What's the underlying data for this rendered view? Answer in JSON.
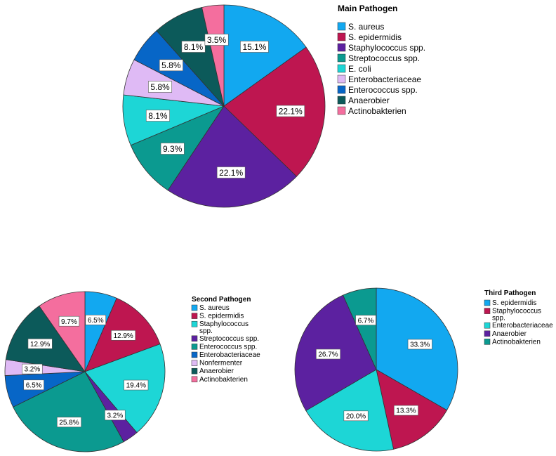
{
  "chart_data": [
    {
      "type": "pie",
      "title": "Main Pathogen",
      "categories": [
        "S. aureus",
        "S. epidermidis",
        "Staphylococcus spp.",
        "Streptococcus spp.",
        "E. coli",
        "Enterobacteriaceae",
        "Enterococcus spp.",
        "Anaerobier",
        "Actinobakterien"
      ],
      "values": [
        15.1,
        22.1,
        22.1,
        9.3,
        8.1,
        5.8,
        5.8,
        8.1,
        3.5
      ],
      "labels": [
        "15.1%",
        "22.1%",
        "22.1%",
        "9.3%",
        "8.1%",
        "5.8%",
        "5.8%",
        "8.1%",
        "3.5%"
      ],
      "colors": [
        "#12a8f0",
        "#be1650",
        "#5c21a0",
        "#0b9a90",
        "#1dd6d6",
        "#dfbaf5",
        "#0766c7",
        "#0c5a5a",
        "#f46e9e"
      ],
      "legend_labels": [
        "S. aureus",
        "S. epidermidis",
        "Staphylococcus spp.",
        "Streptococcus spp.",
        "E. coli",
        "Enterobacteriaceae",
        "Enterococcus spp.",
        "Anaerobier",
        "Actinobakterien"
      ],
      "legend_colors": [
        "#12a8f0",
        "#be1650",
        "#5c21a0",
        "#0b9a90",
        "#1dd6d6",
        "#dfbaf5",
        "#0766c7",
        "#0c5a5a",
        "#f46e9e"
      ],
      "legend_position": "right"
    },
    {
      "type": "pie",
      "title": "Second Pathogen",
      "categories": [
        "S. aureus",
        "S. epidermidis",
        "Staphylococcus spp.",
        "Streptococcus spp.",
        "Enterococcus spp.",
        "Enterobacteriaceae",
        "Nonfermenter",
        "Anaerobier",
        "Actinobakterien"
      ],
      "values": [
        6.5,
        12.9,
        19.4,
        3.2,
        25.8,
        6.5,
        3.2,
        12.9,
        9.7
      ],
      "labels": [
        "6.5%",
        "12.9%",
        "19.4%",
        "3.2%",
        "25.8%",
        "6.5%",
        "3.2%",
        "12.9%",
        "9.7%"
      ],
      "colors": [
        "#12a8f0",
        "#be1650",
        "#1dd6d6",
        "#5c21a0",
        "#0b9a90",
        "#0766c7",
        "#dfbaf5",
        "#0c5a5a",
        "#f46e9e"
      ],
      "legend_labels": [
        "S. aureus",
        "S. epidermidis",
        "Staphylococcus\nspp.",
        "Streptococcus spp.",
        "Enterococcus spp.",
        "Enterobacteriaceae",
        "Nonfermenter",
        "Anaerobier",
        "Actinobakterien"
      ],
      "legend_colors": [
        "#12a8f0",
        "#be1650",
        "#1dd6d6",
        "#5c21a0",
        "#0b9a90",
        "#0766c7",
        "#dfbaf5",
        "#0c5a5a",
        "#f46e9e"
      ],
      "legend_position": "right"
    },
    {
      "type": "pie",
      "title": "Third Pathogen",
      "categories": [
        "S. epidermidis",
        "Staphylococcus spp.",
        "Enterobacteriaceae",
        "Anaerobier",
        "Actinobakterien"
      ],
      "values": [
        33.3,
        13.3,
        20.0,
        26.7,
        6.7
      ],
      "labels": [
        "33.3%",
        "13.3%",
        "20.0%",
        "26.7%",
        "6.7%"
      ],
      "colors": [
        "#12a8f0",
        "#be1650",
        "#1dd6d6",
        "#5c21a0",
        "#0b9a90"
      ],
      "legend_labels": [
        "S. epidermidis",
        "Staphylococcus\nspp.",
        "Enterobacteriaceae",
        "Anaerobier",
        "Actinobakterien"
      ],
      "legend_colors": [
        "#12a8f0",
        "#be1650",
        "#1dd6d6",
        "#5c21a0",
        "#0b9a90"
      ],
      "legend_position": "right"
    }
  ]
}
